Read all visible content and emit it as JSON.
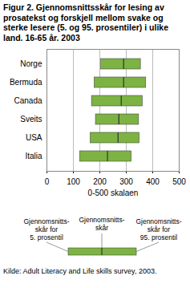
{
  "chart_data": {
    "type": "range",
    "title": "Figur 2. Gjennomsnittsskår for lesing av prosatekst og forskjell mellom svake og sterke lesere (5. og 95. prosentiler) i ulike land. 16-65 år. 2003",
    "orientation": "horizontal",
    "categories": [
      "Norge",
      "Bermuda",
      "Canada",
      "Sveits",
      "USA",
      "Italia"
    ],
    "low": [
      205,
      180,
      170,
      185,
      165,
      125
    ],
    "values": [
      290,
      290,
      281,
      272,
      269,
      229
    ],
    "high": [
      355,
      375,
      362,
      348,
      350,
      320
    ],
    "color": "#7cb342",
    "xlabel": "0-500 skalaen",
    "xlim": [
      0,
      500
    ],
    "xticks": [
      0,
      100,
      200,
      300,
      400,
      500
    ],
    "grid": true,
    "legend_texts": {
      "low": [
        "Gjennomsnitts-",
        "skår for",
        "5. prosentil"
      ],
      "mean": [
        "Gjennomsnitts-",
        "skår"
      ],
      "high": [
        "Gjennomsnitts-",
        "skår for",
        "95. prosentil"
      ]
    },
    "source": "Kilde: Adult Literacy and Life skills survey, 2003."
  }
}
